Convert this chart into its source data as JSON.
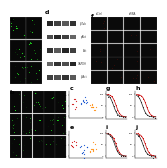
{
  "figure_bg": "#ffffff",
  "panel_label_size": 4.5,
  "panel_label_color": "#000000",
  "panel_a": {
    "label": "a",
    "grid_rows": 3,
    "grid_cols": 2,
    "bg": "#0a0a0a",
    "border": "#444444"
  },
  "panel_d": {
    "label": "d",
    "bg": "#cccccc",
    "n_rows": 5,
    "n_lanes": 4
  },
  "panel_f": {
    "label": "f",
    "bg": "#0a0a0a",
    "grid_rows": 5,
    "grid_cols": 4,
    "border": "#444444"
  },
  "panel_b": {
    "label": "b",
    "grid_rows": 3,
    "grid_cols": 5,
    "bg": "#0a0a0a",
    "border": "#444444"
  },
  "panels_ce": {
    "labels": [
      "c",
      "e"
    ],
    "dot_color_sets": [
      [
        "#cc0000",
        "#0044cc",
        "#ff8800"
      ],
      [
        "#cc0000",
        "#0044cc",
        "#ff8800"
      ]
    ]
  },
  "panels_ghij": {
    "labels": [
      "g",
      "h",
      "i",
      "j"
    ],
    "line_red": "#cc0000",
    "line_dark": "#222222"
  }
}
